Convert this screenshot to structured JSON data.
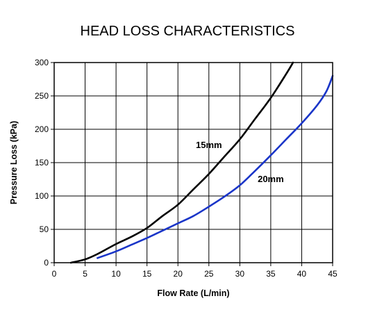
{
  "chart_data": {
    "type": "line",
    "title": "HEAD LOSS CHARACTERISTICS",
    "xlabel": "Flow Rate (L/min)",
    "ylabel": "Pressure Loss (kPa)",
    "xlim": [
      0,
      45
    ],
    "ylim": [
      0,
      300
    ],
    "xticks": [
      0,
      5,
      10,
      15,
      20,
      25,
      30,
      35,
      40,
      45
    ],
    "yticks": [
      0,
      50,
      100,
      150,
      200,
      250,
      300
    ],
    "grid": true,
    "series": [
      {
        "name": "15mm",
        "color": "#000000",
        "x": [
          2.7,
          5,
          7,
          10,
          12.5,
          15,
          17.5,
          20,
          22.5,
          25,
          27.5,
          30,
          32.5,
          35,
          37.5,
          38.6
        ],
        "y": [
          0,
          5,
          13,
          28,
          39,
          52,
          70,
          87,
          110,
          133,
          159,
          185,
          216,
          247,
          283,
          300
        ]
      },
      {
        "name": "20mm",
        "color": "#1a35c8",
        "x": [
          7,
          10,
          12.5,
          15,
          17.5,
          20,
          22.5,
          25,
          27.5,
          30,
          32.5,
          35,
          37.5,
          40,
          42.5,
          44,
          45
        ],
        "y": [
          7,
          17,
          27,
          37,
          48,
          59,
          70,
          84,
          99,
          116,
          138,
          161,
          185,
          209,
          236,
          257,
          280
        ]
      }
    ],
    "annotations": [
      {
        "text": "15mm",
        "x": 25,
        "y": 172
      },
      {
        "text": "20mm",
        "x": 35,
        "y": 121
      }
    ]
  }
}
